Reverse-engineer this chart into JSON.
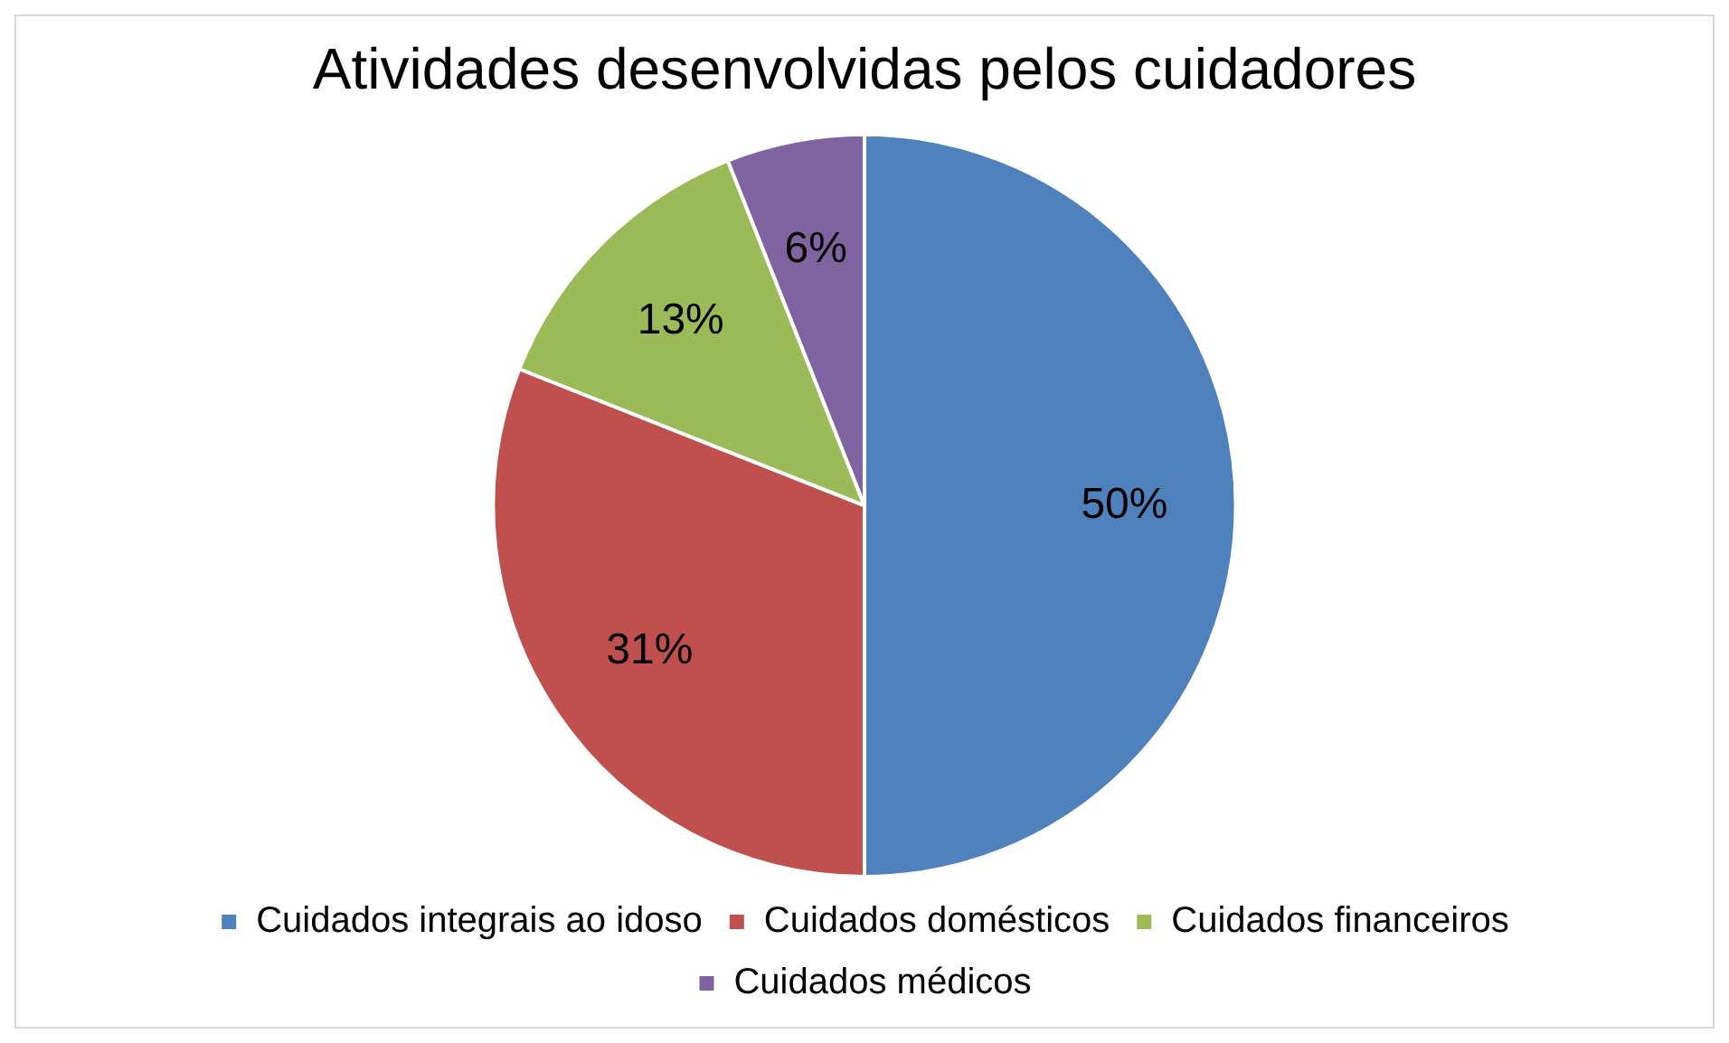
{
  "chart_data": {
    "type": "pie",
    "title": "Atividades desenvolvidas pelos cuidadores",
    "categories": [
      "Cuidados integrais ao idoso",
      "Cuidados domésticos",
      "Cuidados financeiros",
      "Cuidados médicos"
    ],
    "values": [
      50,
      31,
      13,
      6
    ],
    "colors": [
      "#4f81bd",
      "#c0504d",
      "#9bbb59",
      "#8064a2"
    ],
    "value_labels": [
      "50%",
      "31%",
      "13%",
      "6%"
    ],
    "legend": "bottom"
  }
}
